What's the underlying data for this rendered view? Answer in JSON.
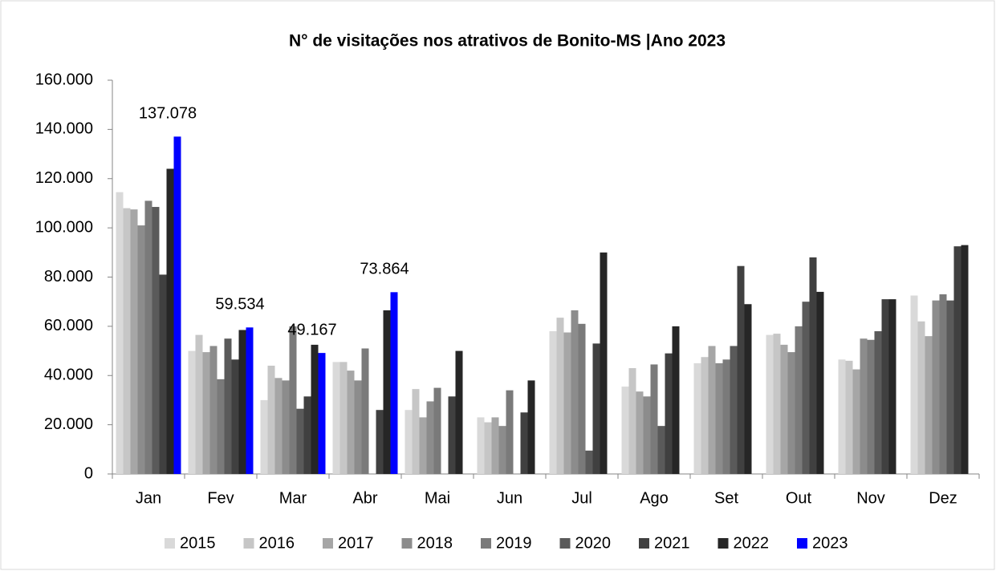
{
  "chart_data": {
    "type": "bar",
    "title": "N° de visitações nos atrativos de Bonito-MS |Ano 2023",
    "categories": [
      "Jan",
      "Fev",
      "Mar",
      "Abr",
      "Mai",
      "Jun",
      "Jul",
      "Ago",
      "Set",
      "Out",
      "Nov",
      "Dez"
    ],
    "series": [
      {
        "name": "2015",
        "color": "#d9d9d9",
        "values": [
          114500,
          50000,
          30000,
          45500,
          26000,
          23000,
          58000,
          35500,
          45000,
          56500,
          46500,
          72500
        ]
      },
      {
        "name": "2016",
        "color": "#c6c6c6",
        "values": [
          108000,
          56500,
          44000,
          45500,
          34500,
          21000,
          63500,
          43000,
          47500,
          57000,
          46000,
          62000
        ]
      },
      {
        "name": "2017",
        "color": "#a6a6a6",
        "values": [
          107500,
          49500,
          39000,
          42000,
          23000,
          23000,
          57500,
          33500,
          52000,
          52500,
          42500,
          56000
        ]
      },
      {
        "name": "2018",
        "color": "#8c8c8c",
        "values": [
          101000,
          52000,
          38000,
          38000,
          29500,
          19500,
          66500,
          31500,
          45000,
          49500,
          55000,
          70500
        ]
      },
      {
        "name": "2019",
        "color": "#7a7a7a",
        "values": [
          111000,
          38500,
          60000,
          51000,
          35000,
          34000,
          61000,
          44500,
          46500,
          60000,
          54500,
          73000
        ]
      },
      {
        "name": "2020",
        "color": "#5a5a5a",
        "values": [
          108500,
          55000,
          26500,
          0,
          0,
          0,
          9500,
          19500,
          52000,
          70000,
          58000,
          70500
        ]
      },
      {
        "name": "2021",
        "color": "#404040",
        "values": [
          81000,
          46500,
          31500,
          26000,
          31500,
          25000,
          53000,
          49000,
          84500,
          88000,
          71000,
          92500
        ]
      },
      {
        "name": "2022",
        "color": "#262626",
        "values": [
          124000,
          58500,
          52500,
          66500,
          50000,
          38000,
          90000,
          60000,
          69000,
          74000,
          71000,
          93000
        ]
      },
      {
        "name": "2023",
        "color": "#0000ff",
        "values": [
          137078,
          59534,
          49167,
          73864,
          null,
          null,
          null,
          null,
          null,
          null,
          null,
          null
        ],
        "value_labels": [
          "137.078",
          "59.534",
          "49.167",
          "73.864",
          null,
          null,
          null,
          null,
          null,
          null,
          null,
          null
        ]
      }
    ],
    "ylim": [
      0,
      160000
    ],
    "yticks": [
      0,
      {
        "value": 20000,
        "label": "20.000"
      },
      {
        "value": 40000,
        "label": "40.000"
      },
      {
        "value": 60000,
        "label": "60.000"
      },
      {
        "value": 80000,
        "label": "80.000"
      },
      {
        "value": 100000,
        "label": "100.000"
      },
      {
        "value": 120000,
        "label": "120.000"
      },
      {
        "value": 140000,
        "label": "140.000"
      },
      {
        "value": 160000,
        "label": "160.000"
      }
    ],
    "grid": false,
    "legend": "bottom"
  }
}
